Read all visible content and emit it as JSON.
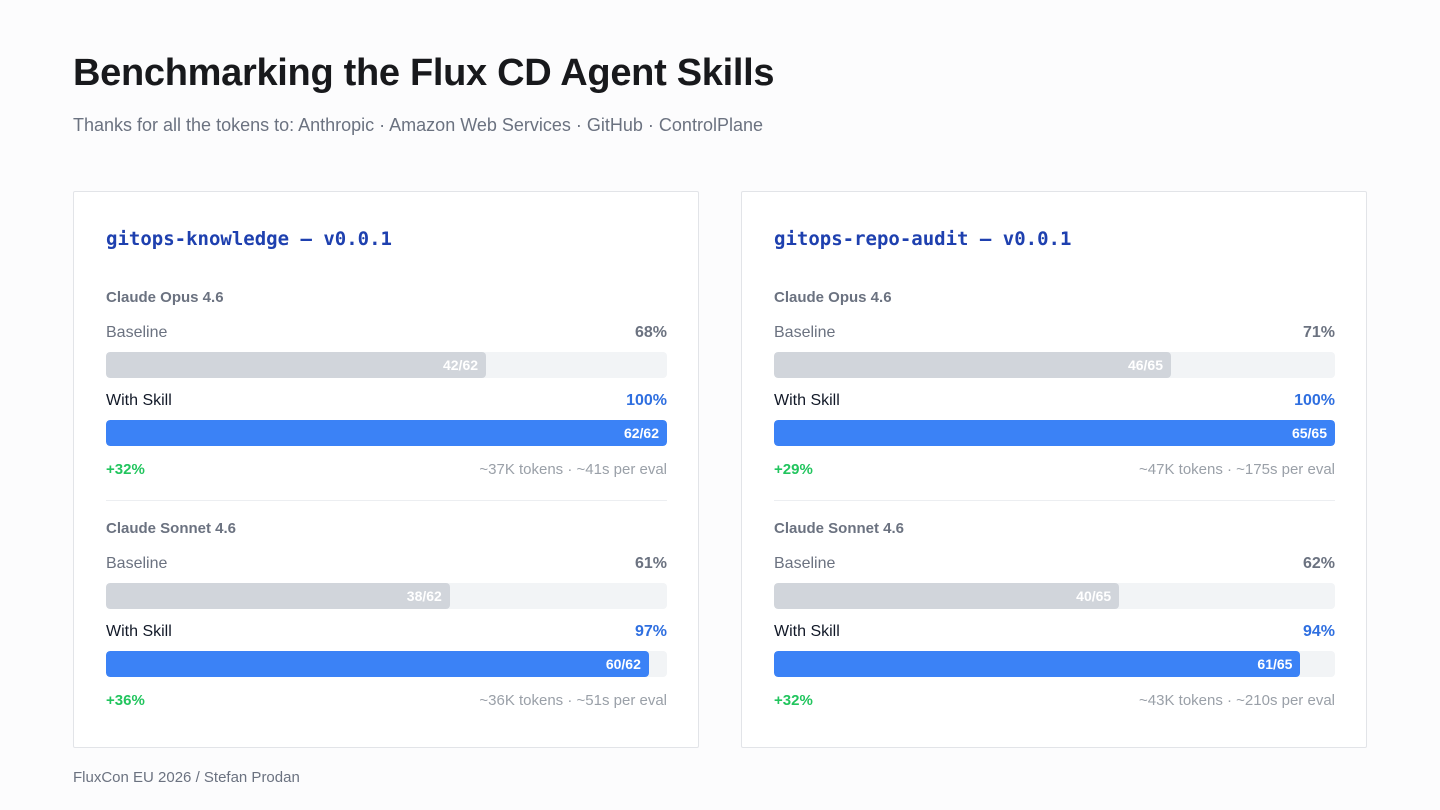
{
  "header": {
    "title": "Benchmarking the Flux CD Agent Skills",
    "subtitle": "Thanks for all the tokens to: Anthropic · Amazon Web Services · GitHub · ControlPlane"
  },
  "footer": {
    "text": "FluxCon EU 2026 / Stefan Prodan"
  },
  "labels": {
    "baseline": "Baseline",
    "with_skill": "With Skill"
  },
  "colors": {
    "baseline": "#d1d5db",
    "skill": "#3b82f6",
    "delta": "#22c55e",
    "title": "#1e40af"
  },
  "chart_data": [
    {
      "type": "bar",
      "title": "gitops-knowledge – v0.0.1",
      "models": [
        {
          "name": "Claude Opus 4.6",
          "baseline": {
            "pct": "68%",
            "passed": 42,
            "total": 62,
            "label": "42/62"
          },
          "with_skill": {
            "pct": "100%",
            "passed": 62,
            "total": 62,
            "label": "62/62"
          },
          "delta": "+32%",
          "stats": "~37K tokens · ~41s per eval"
        },
        {
          "name": "Claude Sonnet 4.6",
          "baseline": {
            "pct": "61%",
            "passed": 38,
            "total": 62,
            "label": "38/62"
          },
          "with_skill": {
            "pct": "97%",
            "passed": 60,
            "total": 62,
            "label": "60/62"
          },
          "delta": "+36%",
          "stats": "~36K tokens · ~51s per eval"
        }
      ]
    },
    {
      "type": "bar",
      "title": "gitops-repo-audit – v0.0.1",
      "models": [
        {
          "name": "Claude Opus 4.6",
          "baseline": {
            "pct": "71%",
            "passed": 46,
            "total": 65,
            "label": "46/65"
          },
          "with_skill": {
            "pct": "100%",
            "passed": 65,
            "total": 65,
            "label": "65/65"
          },
          "delta": "+29%",
          "stats": "~47K tokens · ~175s per eval"
        },
        {
          "name": "Claude Sonnet 4.6",
          "baseline": {
            "pct": "62%",
            "passed": 40,
            "total": 65,
            "label": "40/65"
          },
          "with_skill": {
            "pct": "94%",
            "passed": 61,
            "total": 65,
            "label": "61/65"
          },
          "delta": "+32%",
          "stats": "~43K tokens · ~210s per eval"
        }
      ]
    }
  ]
}
